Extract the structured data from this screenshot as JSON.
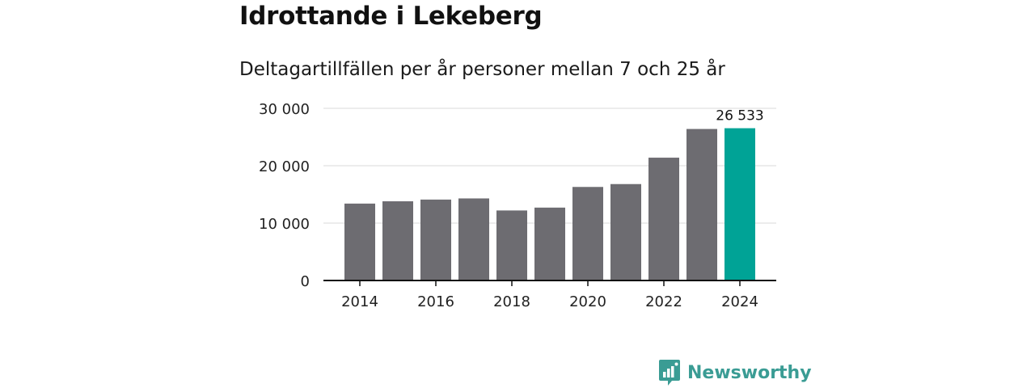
{
  "title": "Idrottande i Lekeberg",
  "subtitle": "Deltagartillfällen per år personer mellan 7 och 25 år",
  "chart_data": {
    "type": "bar",
    "title": "Idrottande i Lekeberg",
    "subtitle": "Deltagartillfällen per år personer mellan 7 och 25 år",
    "categories": [
      "2014",
      "2015",
      "2016",
      "2017",
      "2018",
      "2019",
      "2020",
      "2021",
      "2022",
      "2023",
      "2024"
    ],
    "values": [
      13400,
      13800,
      14100,
      14300,
      12200,
      12700,
      16300,
      16800,
      21400,
      26400,
      26533
    ],
    "x_tick_labels": [
      "2014",
      "2016",
      "2018",
      "2020",
      "2022",
      "2024"
    ],
    "y_tick_labels": [
      "0",
      "10 000",
      "20 000",
      "30 000"
    ],
    "y_ticks": [
      0,
      10000,
      20000,
      30000
    ],
    "ylim": [
      0,
      30000
    ],
    "xlabel": "",
    "ylabel": "",
    "grid": true,
    "highlight_index": 10,
    "highlight_label": "26 533",
    "colors": {
      "bar": "#6d6c71",
      "highlight": "#00a396",
      "grid": "#d9d9d9",
      "axis": "#111111"
    }
  },
  "brand": {
    "name": "Newsworthy",
    "color": "#3a9c94",
    "icon": "bar-chart-speech-icon"
  }
}
